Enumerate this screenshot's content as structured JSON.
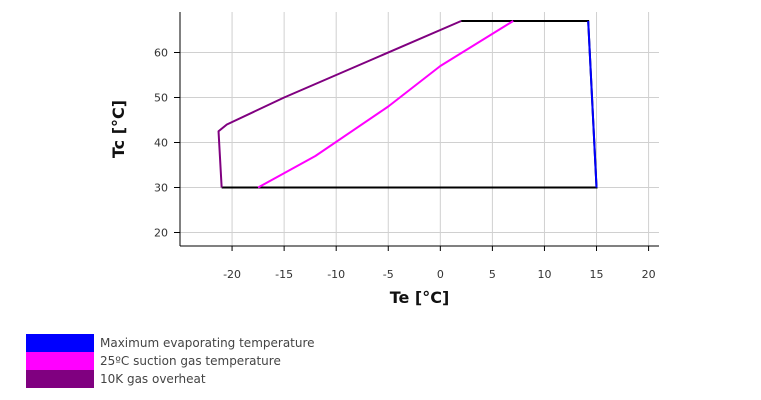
{
  "chart_data": {
    "type": "line",
    "title": "",
    "xlabel": "Te [°C]",
    "ylabel": "Tc [°C]",
    "xlim": [
      -25,
      21
    ],
    "ylim": [
      17,
      69
    ],
    "xticks": [
      -20,
      -15,
      -10,
      -5,
      0,
      5,
      10,
      15,
      20
    ],
    "yticks": [
      20,
      30,
      40,
      50,
      60
    ],
    "grid": true,
    "legend_position": "bottom-left",
    "envelope": {
      "color": "#000000",
      "points": [
        [
          -21,
          30
        ],
        [
          15,
          30
        ],
        [
          14.2,
          67
        ],
        [
          2,
          67
        ]
      ]
    },
    "series": [
      {
        "name": "Maximum evaporating temperature",
        "color": "#0000ff",
        "points": [
          [
            14.2,
            67
          ],
          [
            15,
            30
          ]
        ]
      },
      {
        "name": "25ºC suction gas temperature",
        "color": "#ff00ff",
        "points": [
          [
            -17.5,
            30
          ],
          [
            -12,
            37
          ],
          [
            -5,
            48
          ],
          [
            0,
            57
          ],
          [
            7,
            67
          ]
        ]
      },
      {
        "name": "10K gas overheat",
        "color": "#800080",
        "points": [
          [
            2,
            67
          ],
          [
            -7,
            58
          ],
          [
            -15,
            50
          ],
          [
            -20.5,
            44
          ],
          [
            -21.3,
            42.5
          ],
          [
            -21,
            30
          ]
        ]
      }
    ]
  },
  "legend": {
    "items": [
      {
        "label": "Maximum evaporating temperature",
        "color": "#0000ff"
      },
      {
        "label": "25ºC suction gas temperature",
        "color": "#ff00ff"
      },
      {
        "label": "10K gas overheat",
        "color": "#800080"
      }
    ]
  }
}
